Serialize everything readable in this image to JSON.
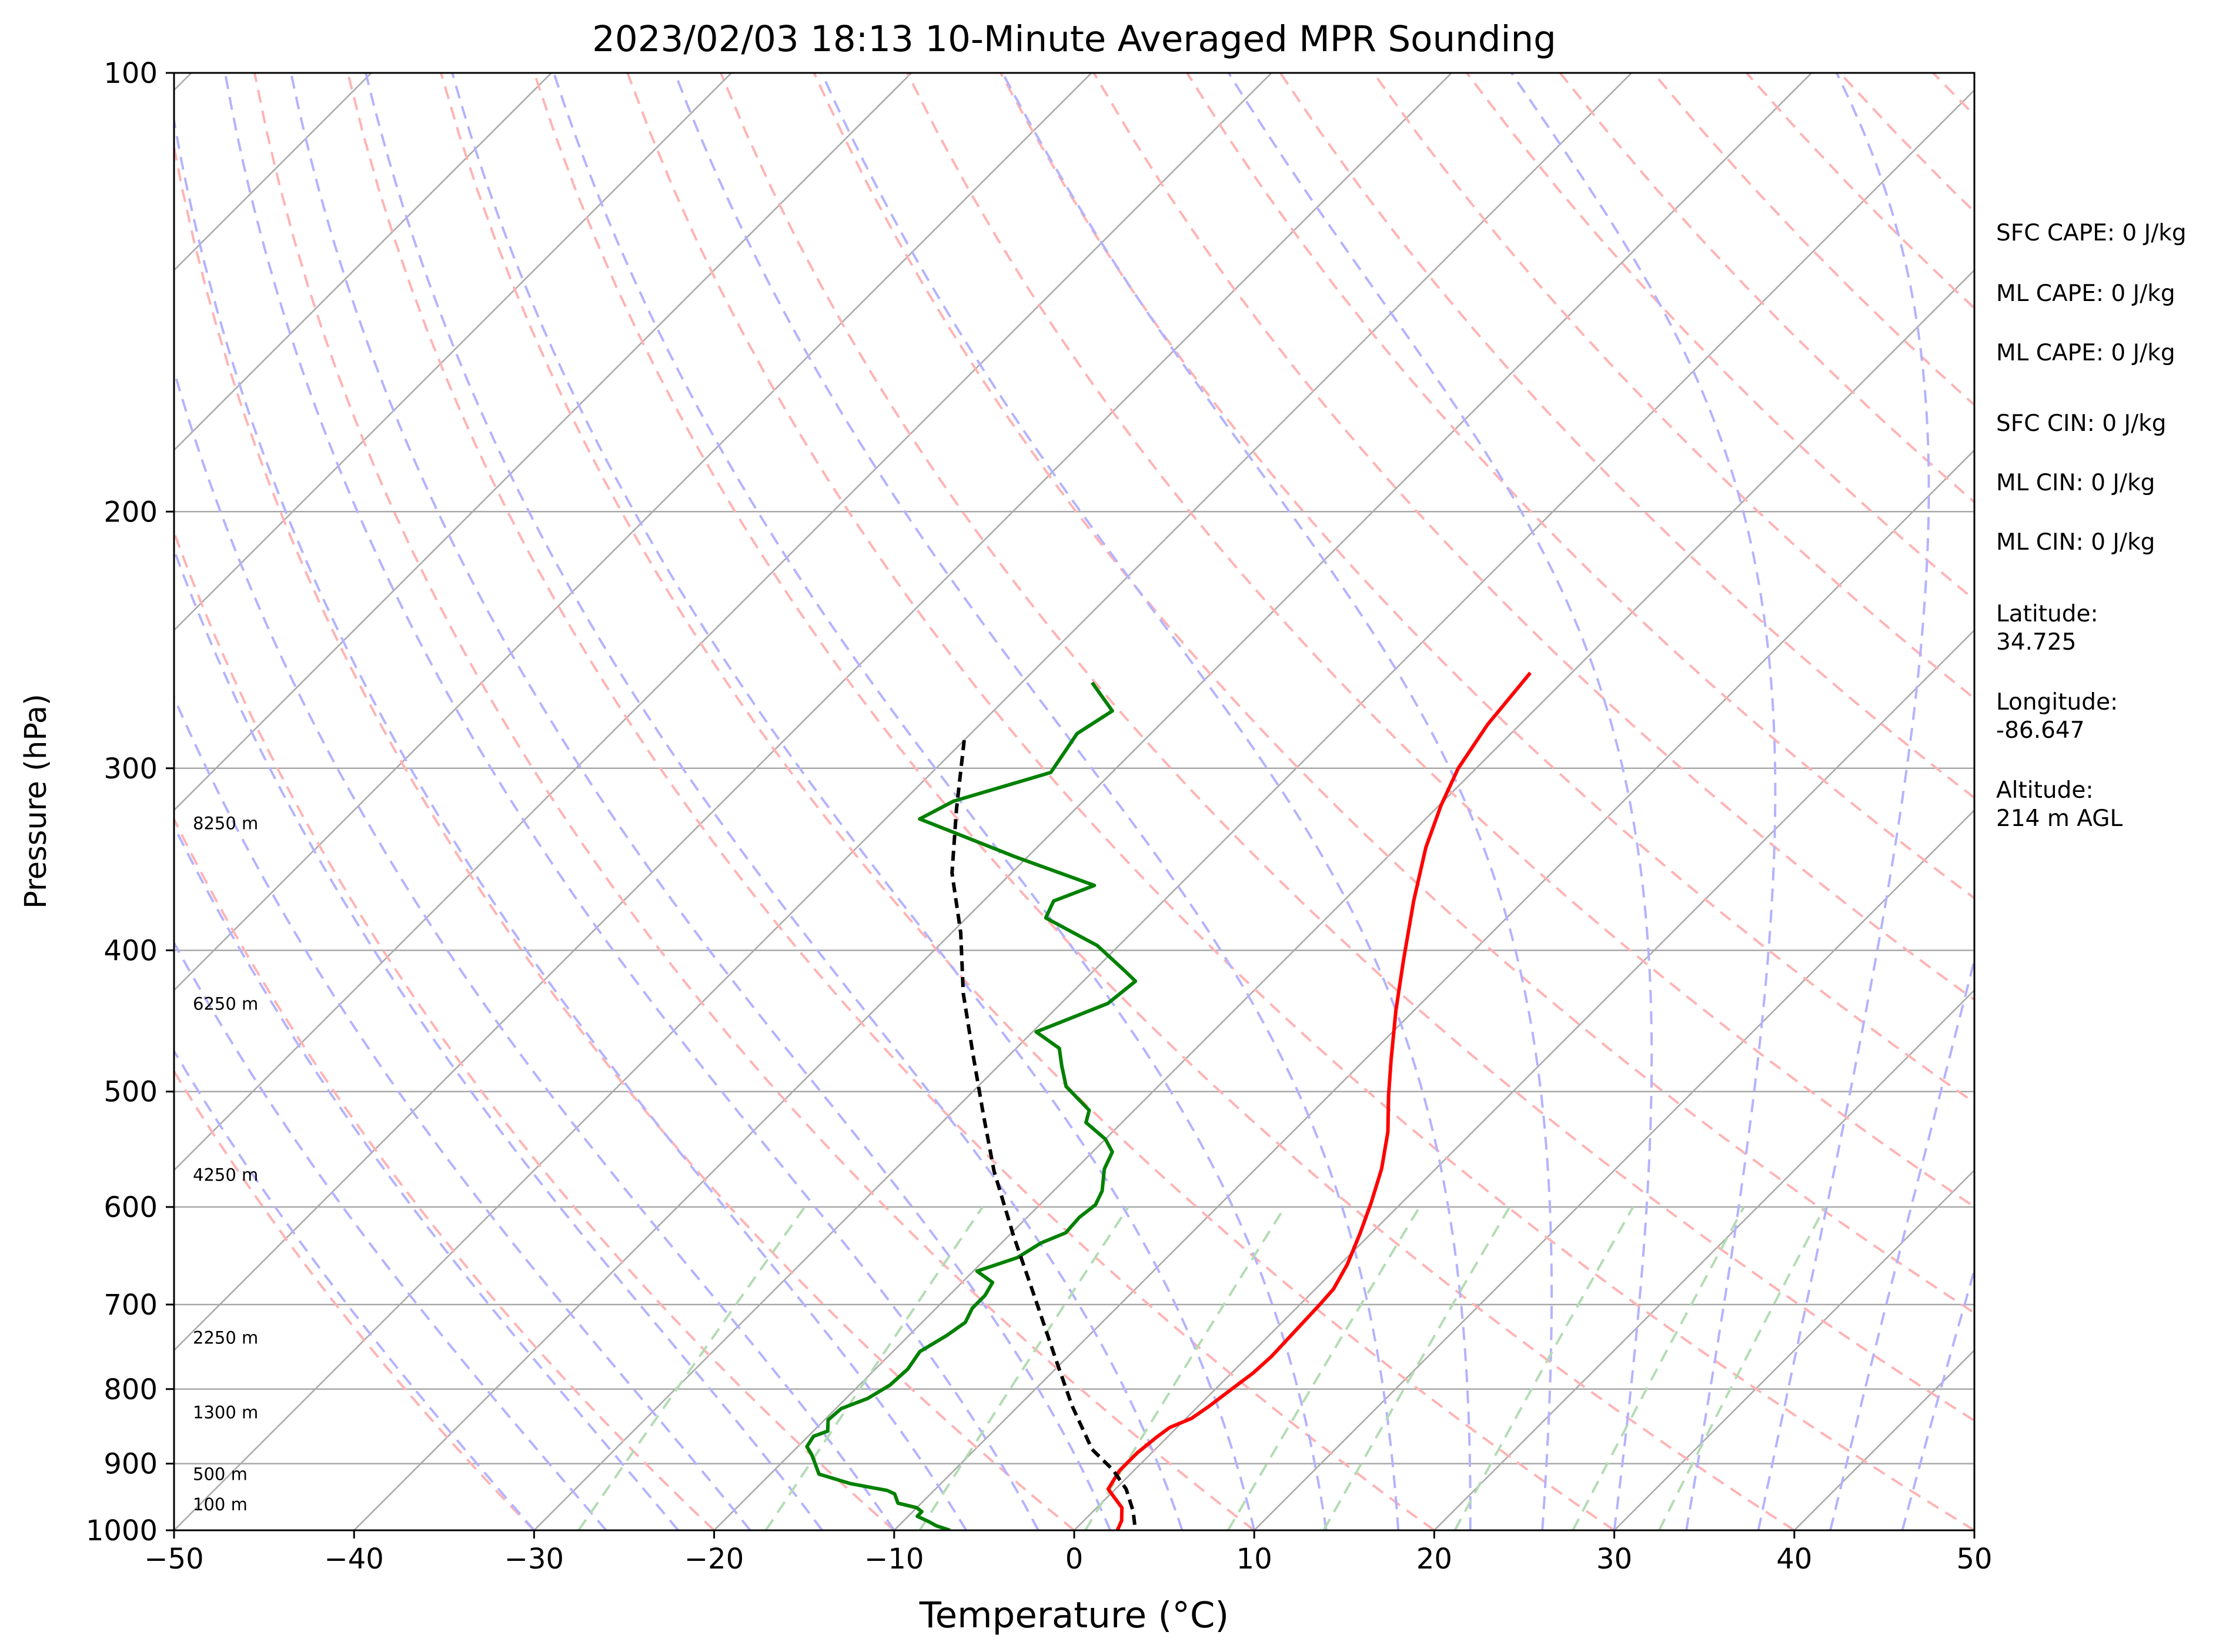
{
  "chart_data": {
    "type": "line",
    "title": "2023/02/03 18:13 10-Minute Averaged MPR Sounding",
    "xlabel": "Temperature (°C)",
    "ylabel": "Pressure (hPa)",
    "xlim": [
      -50,
      50
    ],
    "ylim": [
      1000,
      100
    ],
    "y_scale": "log",
    "x_ticks": [
      "−50",
      "−40",
      "−30",
      "−20",
      "−10",
      "0",
      "10",
      "20",
      "30",
      "40",
      "50"
    ],
    "y_ticks": [
      "100",
      "200",
      "300",
      "400",
      "500",
      "600",
      "700",
      "800",
      "900",
      "1000"
    ],
    "height_labels": [
      "100 m",
      "500 m",
      "1300 m",
      "2250 m",
      "4250 m",
      "6250 m",
      "8250 m"
    ],
    "series": [
      {
        "color": "#ff0000",
        "points": [
          [
            -22.3,
            258
          ],
          [
            -21.8,
            280
          ],
          [
            -21.0,
            300
          ],
          [
            -19.9,
            318
          ],
          [
            -18.4,
            340
          ],
          [
            -16.1,
            370
          ],
          [
            -13.4,
            406
          ],
          [
            -11.0,
            440
          ],
          [
            -8.5,
            476
          ],
          [
            -6.7,
            503
          ],
          [
            -4.7,
            533
          ],
          [
            -3.0,
            565
          ],
          [
            -1.7,
            596
          ],
          [
            -0.6,
            626
          ],
          [
            0.4,
            657
          ],
          [
            1.0,
            683
          ],
          [
            1.1,
            700
          ],
          [
            1.2,
            730
          ],
          [
            1.3,
            760
          ],
          [
            1.2,
            780
          ],
          [
            0.9,
            800
          ],
          [
            0.6,
            822
          ],
          [
            0.3,
            838
          ],
          [
            -0.4,
            850
          ],
          [
            -0.6,
            863
          ],
          [
            -0.8,
            885
          ],
          [
            -0.8,
            910
          ],
          [
            -0.4,
            937
          ],
          [
            1.4,
            965
          ],
          [
            2.1,
            985
          ],
          [
            2.4,
            1000
          ]
        ]
      },
      {
        "color": "#008000",
        "points": [
          [
            -46.1,
            262
          ],
          [
            -43.4,
            274
          ],
          [
            -44.1,
            284
          ],
          [
            -43.4,
            302
          ],
          [
            -47.2,
            316
          ],
          [
            -48.1,
            325
          ],
          [
            -40.7,
            345
          ],
          [
            -34.7,
            361
          ],
          [
            -36.1,
            370
          ],
          [
            -35.6,
            380
          ],
          [
            -31.2,
            397
          ],
          [
            -28.3,
            413
          ],
          [
            -27.1,
            420
          ],
          [
            -27.4,
            435
          ],
          [
            -29.8,
            455
          ],
          [
            -27.6,
            467
          ],
          [
            -26.5,
            480
          ],
          [
            -25.1,
            496
          ],
          [
            -22.5,
            515
          ],
          [
            -22.0,
            525
          ],
          [
            -20.0,
            539
          ],
          [
            -18.9,
            550
          ],
          [
            -18.4,
            565
          ],
          [
            -17.3,
            585
          ],
          [
            -16.9,
            598
          ],
          [
            -17.1,
            610
          ],
          [
            -17.0,
            625
          ],
          [
            -17.8,
            635
          ],
          [
            -18.3,
            650
          ],
          [
            -19.8,
            664
          ],
          [
            -18.3,
            676
          ],
          [
            -18.0,
            690
          ],
          [
            -18.0,
            704
          ],
          [
            -17.6,
            720
          ],
          [
            -17.9,
            735
          ],
          [
            -18.5,
            754
          ],
          [
            -18.2,
            775
          ],
          [
            -18.3,
            795
          ],
          [
            -18.8,
            812
          ],
          [
            -19.7,
            825
          ],
          [
            -19.8,
            840
          ],
          [
            -19.2,
            855
          ],
          [
            -19.7,
            862
          ],
          [
            -19.5,
            876
          ],
          [
            -18.8,
            887
          ],
          [
            -18.2,
            898
          ],
          [
            -17.3,
            915
          ],
          [
            -15.0,
            929
          ],
          [
            -12.6,
            939
          ],
          [
            -12.0,
            944
          ],
          [
            -11.3,
            958
          ],
          [
            -10.0,
            965
          ],
          [
            -9.5,
            971
          ],
          [
            -9.5,
            978
          ],
          [
            -8.6,
            986
          ],
          [
            -7.9,
            993
          ],
          [
            -6.9,
            1000
          ]
        ]
      },
      {
        "color": "#000000",
        "dashed": true,
        "points": [
          [
            -50,
            287
          ],
          [
            -46.6,
            320
          ],
          [
            -43.3,
            354
          ],
          [
            -39.5,
            389
          ],
          [
            -36.0,
            428
          ],
          [
            -32.1,
            471
          ],
          [
            -28.1,
            519
          ],
          [
            -24.4,
            567
          ],
          [
            -19.8,
            627
          ],
          [
            -15.0,
            694
          ],
          [
            -10.6,
            762
          ],
          [
            -7.0,
            822
          ],
          [
            -3.5,
            880
          ],
          [
            -1.2,
            909
          ],
          [
            0.6,
            937
          ],
          [
            2.2,
            970
          ],
          [
            3.4,
            1000
          ]
        ]
      }
    ],
    "stats": [
      "SFC CAPE: 0 J/kg",
      "ML CAPE: 0 J/kg",
      "ML CAPE: 0 J/kg",
      "SFC CIN: 0 J/kg",
      "ML CIN: 0 J/kg",
      "ML CIN: 0 J/kg",
      "Latitude:\n34.725",
      "Longitude:\n-86.647",
      "Altitude:\n214 m AGL"
    ],
    "grid": true,
    "colors": {
      "temperature": "#ff0000",
      "dewpoint": "#008000",
      "parcel": "#000000",
      "isotherm": "#a8a8a8",
      "dry_adiabat": "#ffb3b3",
      "moist_adiabat": "#b3b3ff",
      "mixing_ratio": "#b3dcb3"
    }
  }
}
